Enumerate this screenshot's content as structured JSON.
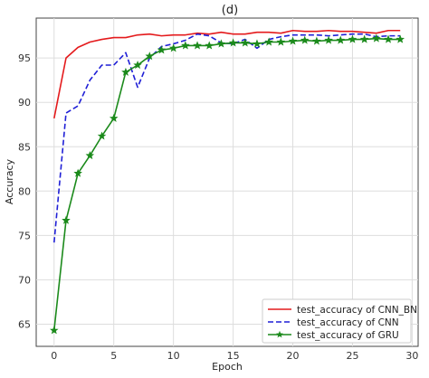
{
  "chart_data": {
    "type": "line",
    "title": "(d)",
    "xlabel": "Epoch",
    "ylabel": "Accuracy",
    "xlim": [
      -1.5,
      30.5
    ],
    "ylim": [
      62.5,
      99.5
    ],
    "xticks": [
      0,
      5,
      10,
      15,
      20,
      25,
      30
    ],
    "yticks": [
      65,
      70,
      75,
      80,
      85,
      90,
      95
    ],
    "grid": true,
    "legend_position": "lower-right",
    "x": [
      0,
      1,
      2,
      3,
      4,
      5,
      6,
      7,
      8,
      9,
      10,
      11,
      12,
      13,
      14,
      15,
      16,
      17,
      18,
      19,
      20,
      21,
      22,
      23,
      24,
      25,
      26,
      27,
      28,
      29
    ],
    "series": [
      {
        "name": "test_accuracy of CNN_BN",
        "color": "#e41a1c",
        "style": "solid",
        "marker": "none",
        "values": [
          88.2,
          95.0,
          96.2,
          96.8,
          97.1,
          97.3,
          97.3,
          97.6,
          97.7,
          97.5,
          97.6,
          97.6,
          97.8,
          97.7,
          97.9,
          97.7,
          97.7,
          97.9,
          97.9,
          97.8,
          98.1,
          98.0,
          98.0,
          98.1,
          98.0,
          98.0,
          97.9,
          97.8,
          98.1,
          98.1
        ]
      },
      {
        "name": "test_accuracy of CNN",
        "color": "#1f1fd6",
        "style": "dashed",
        "marker": "none",
        "values": [
          74.2,
          88.8,
          89.6,
          92.5,
          94.2,
          94.2,
          95.6,
          91.7,
          95.0,
          96.3,
          96.6,
          97.0,
          97.7,
          97.5,
          96.7,
          96.6,
          97.1,
          96.1,
          97.1,
          97.4,
          97.6,
          97.6,
          97.6,
          97.5,
          97.6,
          97.7,
          97.7,
          97.4,
          97.5,
          97.5
        ]
      },
      {
        "name": "test_accuracy of GRU",
        "color": "#1b8a1b",
        "style": "solid",
        "marker": "star",
        "values": [
          64.3,
          76.7,
          82.0,
          84.0,
          86.2,
          88.2,
          93.4,
          94.2,
          95.2,
          95.9,
          96.1,
          96.4,
          96.4,
          96.4,
          96.6,
          96.7,
          96.7,
          96.6,
          96.8,
          96.8,
          96.9,
          97.0,
          96.9,
          97.0,
          97.0,
          97.1,
          97.1,
          97.2,
          97.1,
          97.1
        ]
      }
    ]
  }
}
